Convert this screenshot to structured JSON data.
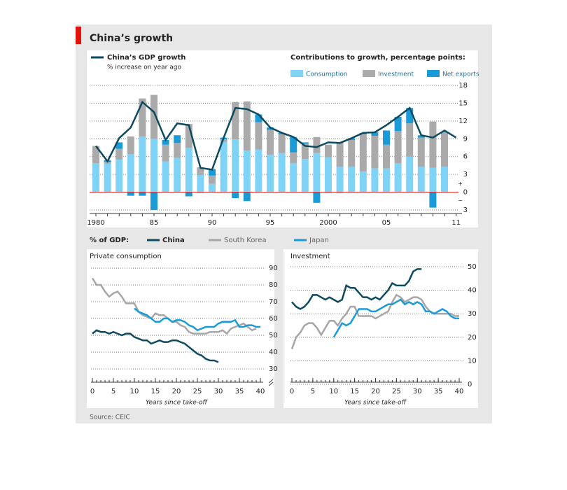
{
  "title": "China’s growth",
  "source": "Source: CEIC",
  "bottom_legend_label": "% of GDP:",
  "chart_data": [
    {
      "type": "stacked-bar-line",
      "categories": [
        "1980",
        null,
        null,
        null,
        null,
        "85",
        null,
        null,
        null,
        null,
        "90",
        null,
        null,
        null,
        null,
        "95",
        null,
        null,
        null,
        null,
        "2000",
        null,
        null,
        null,
        null,
        "05",
        null,
        null,
        null,
        null,
        null,
        "11"
      ],
      "line": {
        "name": "China’s GDP growth",
        "subtitle": "% increase on year ago",
        "color": "#0d4a60",
        "values": [
          7.8,
          5.2,
          9.1,
          10.9,
          15.2,
          13.5,
          8.8,
          11.6,
          11.3,
          4.1,
          3.8,
          9.2,
          14.2,
          14.0,
          13.1,
          10.9,
          10.0,
          9.3,
          7.8,
          7.6,
          8.4,
          8.3,
          9.1,
          10.0,
          10.1,
          11.3,
          12.7,
          14.2,
          9.6,
          9.2,
          10.4,
          9.2
        ]
      },
      "bars_title": "Contributions to growth, percentage points:",
      "series": [
        {
          "name": "Consumption",
          "color": "#7fd3f7",
          "values": [
            4.9,
            4.8,
            5.5,
            6.4,
            9.4,
            9.0,
            5.2,
            5.8,
            7.5,
            2.9,
            1.4,
            8.5,
            8.9,
            7.0,
            7.2,
            6.3,
            6.6,
            4.9,
            5.6,
            6.6,
            5.9,
            4.3,
            4.3,
            3.5,
            4.0,
            4.0,
            4.9,
            6.0,
            4.3,
            4.1,
            4.3,
            null
          ]
        },
        {
          "name": "Investment",
          "color": "#aaaaaa",
          "values": [
            2.9,
            0.3,
            1.8,
            3.0,
            6.4,
            7.4,
            2.8,
            2.5,
            4.0,
            1.3,
            1.4,
            0.4,
            6.3,
            8.3,
            4.6,
            4.2,
            3.2,
            1.8,
            2.6,
            2.7,
            2.1,
            4.1,
            4.5,
            6.3,
            5.5,
            4.0,
            5.4,
            5.6,
            4.9,
            7.8,
            5.8,
            null
          ]
        },
        {
          "name": "Net exports",
          "color": "#1a9bd7",
          "values": [
            0,
            0.3,
            1.1,
            -0.6,
            -0.6,
            -3.0,
            0.8,
            1.3,
            -0.7,
            -0.1,
            1.1,
            0.3,
            -1.0,
            -1.5,
            1.3,
            0.4,
            0.2,
            2.6,
            0.2,
            -1.8,
            -0.1,
            -0.1,
            0.3,
            0.2,
            0.6,
            2.4,
            2.4,
            2.6,
            0.4,
            -2.6,
            0.1,
            null
          ]
        }
      ],
      "ylim": [
        -3,
        18
      ],
      "yticks": [
        {
          "value": -3,
          "label": "3"
        },
        0,
        3,
        6,
        9,
        12,
        15,
        18
      ],
      "sign_labels": [
        "+",
        "−"
      ],
      "grid": true,
      "zero_line_color": "#e0201b"
    },
    {
      "type": "line",
      "title": "Private consumption",
      "x_label": "Years since take-off",
      "x": [
        0,
        1,
        2,
        3,
        4,
        5,
        6,
        7,
        8,
        9,
        10,
        11,
        12,
        13,
        14,
        15,
        16,
        17,
        18,
        19,
        20,
        21,
        22,
        23,
        24,
        25,
        26,
        27,
        28,
        29,
        30,
        31,
        32,
        33,
        34,
        35,
        36,
        37,
        38,
        39,
        40
      ],
      "series": [
        {
          "name": "China",
          "color": "#0d4a60",
          "values": [
            51,
            53,
            52,
            52,
            51,
            52,
            51,
            50,
            51,
            51,
            49,
            48,
            47,
            47,
            45,
            46,
            47,
            46,
            46,
            47,
            47,
            46,
            45,
            43,
            41,
            39,
            38,
            36,
            35,
            35,
            34,
            null,
            null,
            null,
            null,
            null,
            null,
            null,
            null,
            null,
            null
          ]
        },
        {
          "name": "South Korea",
          "color": "#a6a6a6",
          "values": [
            84,
            80,
            80,
            76,
            73,
            75,
            76,
            73,
            69,
            69,
            69,
            64,
            62,
            61,
            60,
            63,
            62,
            62,
            60,
            58,
            58,
            56,
            55,
            52,
            51,
            51,
            51,
            51,
            52,
            52,
            52,
            53,
            51,
            54,
            55,
            56,
            57,
            55,
            53,
            54,
            null
          ]
        },
        {
          "name": "Japan",
          "color": "#1a9bd7",
          "values": [
            null,
            null,
            null,
            null,
            null,
            null,
            null,
            null,
            null,
            null,
            66,
            64,
            63,
            62,
            60,
            58,
            58,
            60,
            60,
            58,
            59,
            59,
            58,
            56,
            55,
            53,
            54,
            55,
            55,
            55,
            57,
            58,
            58,
            58,
            59,
            55,
            55,
            56,
            56,
            55,
            55
          ]
        }
      ],
      "xlim": [
        0,
        40
      ],
      "xticks": [
        0,
        5,
        10,
        15,
        20,
        25,
        30,
        35,
        40
      ],
      "ylim": [
        30,
        90
      ],
      "yticks": [
        30,
        40,
        50,
        60,
        70,
        80,
        90
      ],
      "grid": true
    },
    {
      "type": "line",
      "title": "Investment",
      "x_label": "Years since take-off",
      "x": [
        0,
        1,
        2,
        3,
        4,
        5,
        6,
        7,
        8,
        9,
        10,
        11,
        12,
        13,
        14,
        15,
        16,
        17,
        18,
        19,
        20,
        21,
        22,
        23,
        24,
        25,
        26,
        27,
        28,
        29,
        30,
        31,
        32,
        33,
        34,
        35,
        36,
        37,
        38,
        39,
        40
      ],
      "series": [
        {
          "values": [
            35,
            33,
            32,
            33,
            35,
            38,
            38,
            37,
            36,
            37,
            36,
            35,
            36,
            42,
            41,
            41,
            39,
            37,
            37,
            36,
            37,
            36,
            38,
            40,
            43,
            42,
            42,
            42,
            44,
            48,
            49,
            49,
            null,
            null,
            null,
            null,
            null,
            null,
            null,
            null,
            null
          ]
        },
        {
          "values": [
            15,
            20,
            22,
            25,
            26,
            26,
            24,
            21,
            24,
            27,
            27,
            25,
            28,
            30,
            33,
            33,
            29,
            29,
            29,
            29,
            28,
            29,
            30,
            31,
            35,
            38,
            37,
            35,
            36,
            37,
            37,
            36,
            33,
            31,
            30,
            30,
            30,
            30,
            30,
            29,
            29
          ]
        },
        {
          "values": [
            null,
            null,
            null,
            null,
            null,
            null,
            null,
            null,
            null,
            null,
            20,
            23,
            26,
            25,
            26,
            29,
            32,
            32,
            32,
            31,
            31,
            32,
            33,
            34,
            34,
            35,
            36,
            34,
            35,
            34,
            35,
            34,
            31,
            31,
            30,
            31,
            32,
            31,
            29,
            28,
            28
          ]
        }
      ],
      "xlim": [
        0,
        40
      ],
      "xticks": [
        0,
        5,
        10,
        15,
        20,
        25,
        30,
        35,
        40
      ],
      "ylim": [
        0,
        50
      ],
      "yticks": [
        0,
        10,
        20,
        30,
        40,
        50
      ],
      "grid": true
    }
  ]
}
